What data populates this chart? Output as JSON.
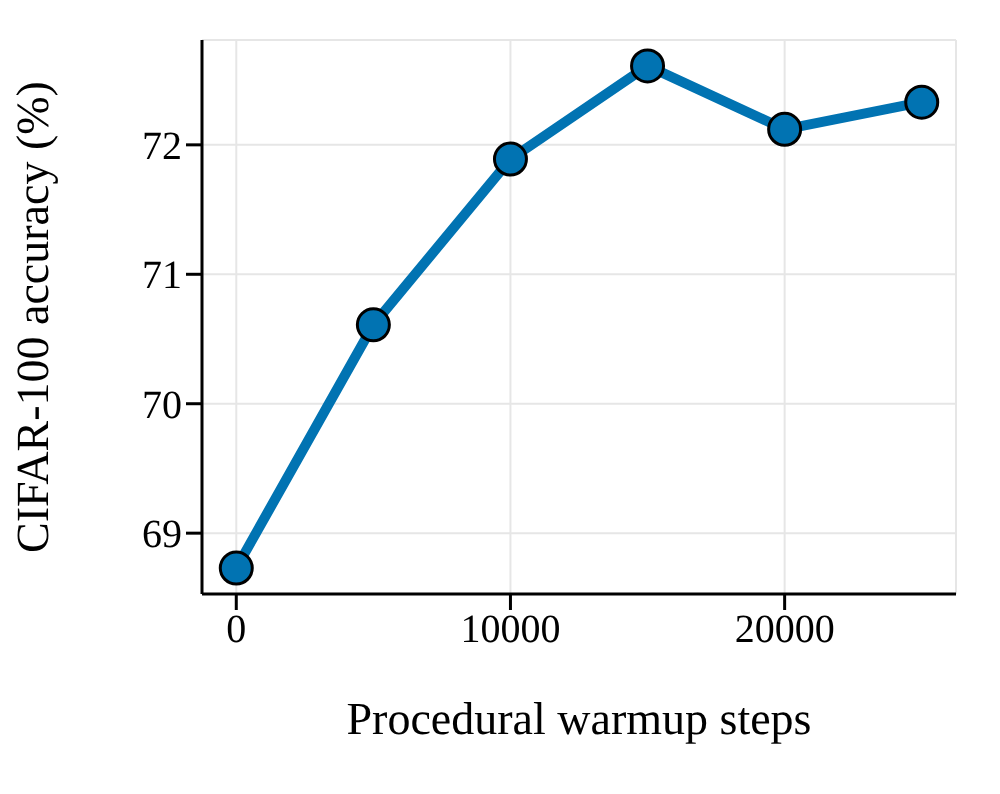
{
  "chart_data": {
    "type": "line",
    "xlabel": "Procedural warmup steps",
    "ylabel": "CIFAR-100 accuracy (%)",
    "x": [
      0,
      5000,
      10000,
      15000,
      20000,
      25000
    ],
    "series": [
      {
        "color": "#0173b2",
        "values": [
          68.73,
          70.61,
          71.89,
          72.61,
          72.12,
          72.33
        ]
      }
    ],
    "xlim": [
      -1250,
      26250
    ],
    "xticks": [
      0,
      10000,
      20000
    ],
    "ylim": [
      68.53,
      72.81
    ],
    "yticks": [
      69,
      70,
      71,
      72
    ],
    "grid": true,
    "marker": "circle",
    "line_style": "solid"
  }
}
